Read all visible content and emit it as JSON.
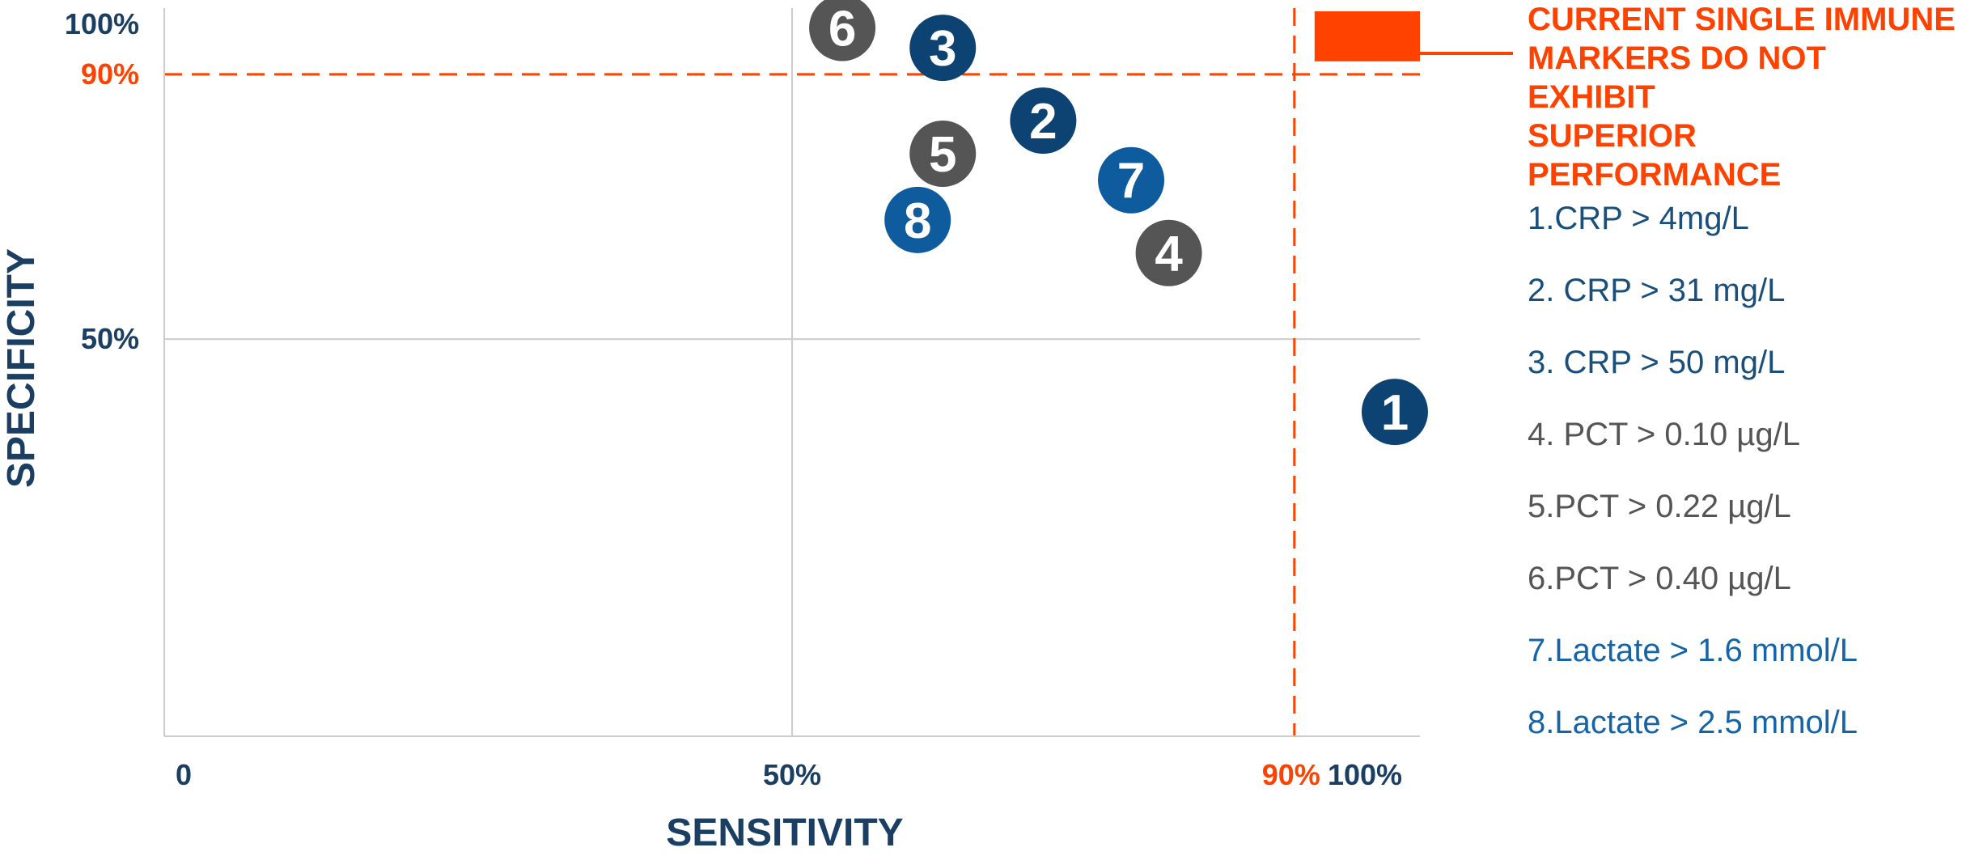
{
  "chart_data": {
    "type": "scatter",
    "xlabel": "SENSITIVITY",
    "ylabel": "SPECIFICITY",
    "x_ticks": [
      "0",
      "50%",
      "90%",
      "100%"
    ],
    "y_ticks": [
      "100%",
      "90%",
      "50%"
    ],
    "xlim": [
      0,
      100
    ],
    "ylim": [
      -10,
      100
    ],
    "threshold_x": 90,
    "threshold_y": 90,
    "grid": true,
    "points": [
      {
        "label": "1",
        "x": 98,
        "y": 39,
        "group": "CRP"
      },
      {
        "label": "2",
        "x": 70,
        "y": 83,
        "group": "CRP"
      },
      {
        "label": "3",
        "x": 62,
        "y": 94,
        "group": "CRP"
      },
      {
        "label": "4",
        "x": 80,
        "y": 63,
        "group": "PCT"
      },
      {
        "label": "5",
        "x": 62,
        "y": 78,
        "group": "PCT"
      },
      {
        "label": "6",
        "x": 54,
        "y": 97,
        "group": "PCT"
      },
      {
        "label": "7",
        "x": 77,
        "y": 74,
        "group": "Lactate"
      },
      {
        "label": "8",
        "x": 60,
        "y": 68,
        "group": "Lactate"
      }
    ],
    "target_region": {
      "x": [
        90,
        100
      ],
      "y": [
        90,
        100
      ]
    },
    "callout": [
      "CURRENT SINGLE IMMUNE",
      "MARKERS DO NOT EXHIBIT",
      "SUPERIOR PERFORMANCE"
    ],
    "legend": [
      {
        "text": "1.CRP > 4mg/L",
        "group": "CRP"
      },
      {
        "text": "2.  CRP > 31 mg/L",
        "group": "CRP"
      },
      {
        "text": "3.  CRP > 50 mg/L",
        "group": "CRP"
      },
      {
        "text": "4.  PCT > 0.10 µg/L",
        "group": "PCT"
      },
      {
        "text": "5.PCT > 0.22 µg/L",
        "group": "PCT"
      },
      {
        "text": "6.PCT > 0.40 µg/L",
        "group": "PCT"
      },
      {
        "text": "7.Lactate > 1.6 mmol/L",
        "group": "Lactate"
      },
      {
        "text": "8.Lactate > 2.5 mmol/L",
        "group": "Lactate"
      }
    ]
  },
  "colors": {
    "CRP": "#0d4372",
    "PCT": "#555555",
    "Lactate": "#0e5c9e",
    "CRP_text": "#1a4f7c",
    "PCT_text": "#555555",
    "Lactate_text": "#1664a8",
    "highlight": "#ff4200",
    "axis_text": "#1a3f63",
    "grid": "#cccccc"
  }
}
